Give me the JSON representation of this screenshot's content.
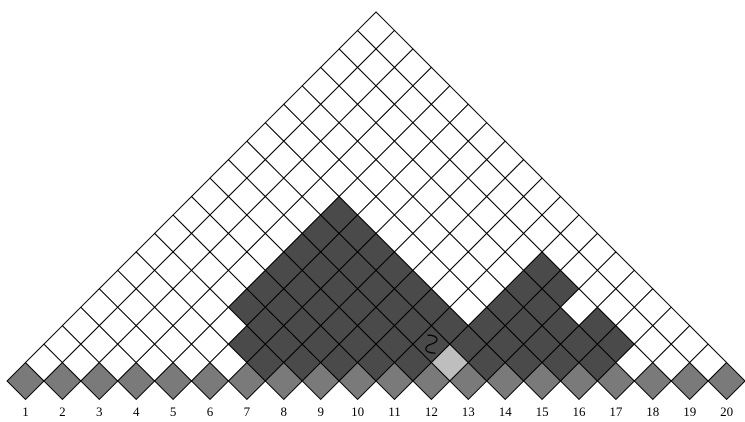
{
  "diagram": {
    "n": 20,
    "colors": {
      "background": "#ffffff",
      "grid_stroke": "#000000",
      "base_row": "#7a7a7a",
      "dark_block": "#4a4a4a",
      "light_block": "#bebebe",
      "white_cell": "#ffffff"
    },
    "base_row_level": 0,
    "blocks": [
      {
        "name": "dark-block-left",
        "shade": "dark_block",
        "i_min": 5,
        "i_max": 11,
        "j_min": 8,
        "j_max": 14
      },
      {
        "name": "dark-block-right",
        "shade": "dark_block",
        "i_min": 12,
        "i_max": 16,
        "j_min": 14,
        "j_max": 18
      },
      {
        "name": "light-block-center",
        "shade": "light_block",
        "i_min": 8,
        "i_max": 14,
        "j_min": 8,
        "j_max": 14
      }
    ],
    "white_exceptions": [
      [
        5,
        8
      ],
      [
        14,
        18
      ]
    ],
    "squiggle_cell": [
      11,
      13
    ],
    "x_tick_labels": [
      "1",
      "2",
      "3",
      "4",
      "5",
      "6",
      "7",
      "8",
      "9",
      "10",
      "11",
      "12",
      "13",
      "14",
      "15",
      "16",
      "17",
      "18",
      "19",
      "20"
    ]
  }
}
